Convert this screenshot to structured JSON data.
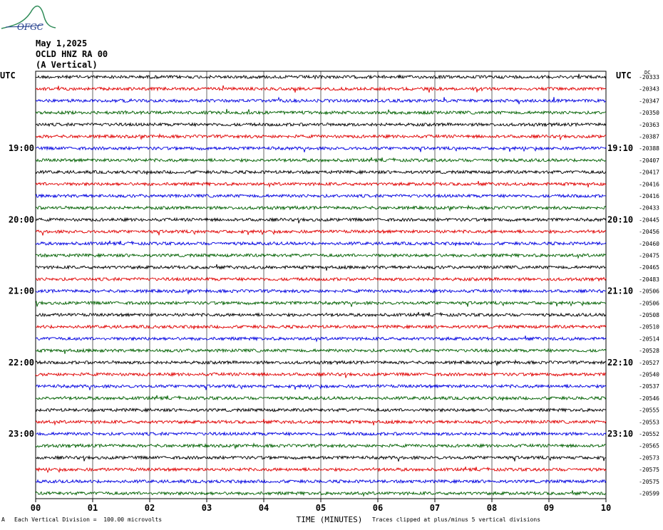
{
  "header": {
    "date": "May 1,2025",
    "station": "OCLD HNZ RA 00",
    "component": "(A Vertical)",
    "logo_text": "OFGC"
  },
  "chart_data": {
    "type": "line",
    "title": "",
    "xlabel": "TIME (MINUTES)",
    "x_ticks": [
      "00",
      "01",
      "02",
      "03",
      "04",
      "05",
      "06",
      "07",
      "08",
      "09",
      "10"
    ],
    "xlim": [
      0,
      10
    ],
    "left_axis_label": "UTC",
    "right_axis_label": "UTC",
    "dc_label": "DC",
    "grid": true,
    "left_time_labels": [
      {
        "row": 6,
        "text": "19:00"
      },
      {
        "row": 12,
        "text": "20:00"
      },
      {
        "row": 18,
        "text": "21:00"
      },
      {
        "row": 24,
        "text": "22:00"
      },
      {
        "row": 30,
        "text": "23:00"
      }
    ],
    "right_time_labels": [
      {
        "row": 6,
        "text": "19:10"
      },
      {
        "row": 12,
        "text": "20:10"
      },
      {
        "row": 18,
        "text": "21:10"
      },
      {
        "row": 24,
        "text": "22:10"
      },
      {
        "row": 30,
        "text": "23:10"
      }
    ],
    "trace_colors": [
      "#000000",
      "#e00000",
      "#0000e0",
      "#006000"
    ],
    "dc_offsets": [
      "-20333",
      "-20343",
      "-20347",
      "-20350",
      "-20363",
      "-20387",
      "-20388",
      "-20407",
      "-20417",
      "-20416",
      "-20416",
      "-20433",
      "-20445",
      "-20456",
      "-20460",
      "-20475",
      "-20465",
      "-20483",
      "-20506",
      "-20506",
      "-20508",
      "-20510",
      "-20514",
      "-20528",
      "-20527",
      "-20540",
      "-20537",
      "-20546",
      "-20555",
      "-20553",
      "-20552",
      "-20565",
      "-20573",
      "-20575",
      "-20575",
      "-20599"
    ]
  },
  "footer": {
    "scale_note": "Each Vertical Division =  100.00 microvolts",
    "clip_note": "Traces clipped at plus/minus 5 vertical divisions",
    "corner_mark": "A"
  }
}
